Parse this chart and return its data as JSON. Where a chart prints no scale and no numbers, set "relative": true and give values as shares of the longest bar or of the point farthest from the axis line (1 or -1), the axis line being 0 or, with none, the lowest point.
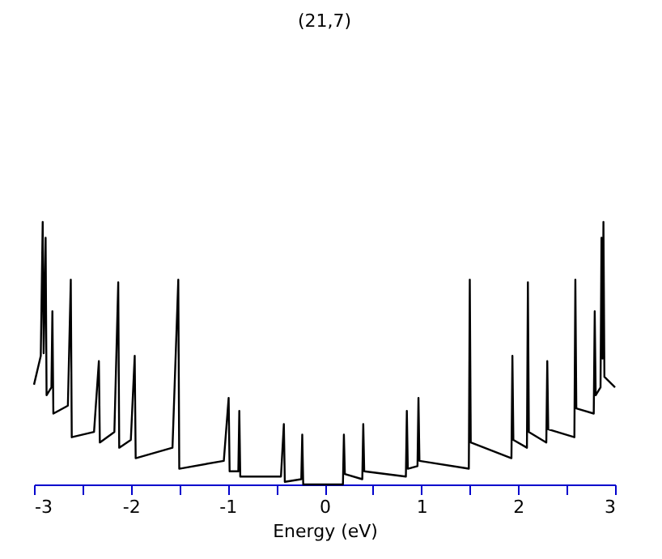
{
  "chart_data": {
    "type": "line",
    "title": "(21,7)",
    "xlabel": "Energy (eV)",
    "relative": true,
    "xlim": [
      -3,
      3
    ],
    "xticks": [
      -3,
      {
        "value": -2.5,
        "label": null
      },
      -2,
      {
        "value": -1.5,
        "label": null
      },
      -1,
      {
        "value": -0.5,
        "label": null
      },
      0,
      {
        "value": 0.5,
        "label": null
      },
      1,
      {
        "value": 1.5,
        "label": null
      },
      2,
      {
        "value": 2.5,
        "label": null
      },
      3
    ],
    "series": [
      {
        "color": "#000000",
        "x": [
          -3.0,
          -2.93,
          -2.91,
          -2.9,
          -2.88,
          -2.87,
          -2.82,
          -2.81,
          -2.8,
          -2.65,
          -2.62,
          -2.61,
          -2.38,
          -2.33,
          -2.32,
          -2.17,
          -2.13,
          -2.12,
          -2.0,
          -1.96,
          -1.95,
          -1.57,
          -1.51,
          -1.5,
          -1.04,
          -0.99,
          -0.98,
          -0.89,
          -0.88,
          -0.87,
          -0.45,
          -0.42,
          -0.41,
          -0.24,
          -0.23,
          -0.22,
          0.19,
          0.2,
          0.21,
          0.39,
          0.4,
          0.41,
          0.84,
          0.85,
          0.86,
          0.96,
          0.97,
          0.98,
          1.49,
          1.5,
          1.51,
          1.93,
          1.94,
          1.95,
          2.09,
          2.1,
          2.11,
          2.29,
          2.3,
          2.31,
          2.58,
          2.59,
          2.6,
          2.78,
          2.79,
          2.8,
          2.85,
          2.86,
          2.87,
          2.88,
          2.89,
          3.0
        ],
        "values": [
          0.38,
          0.49,
          1.0,
          0.5,
          0.94,
          0.34,
          0.37,
          0.66,
          0.27,
          0.3,
          0.78,
          0.18,
          0.2,
          0.47,
          0.16,
          0.2,
          0.77,
          0.14,
          0.17,
          0.49,
          0.1,
          0.14,
          0.78,
          0.06,
          0.09,
          0.33,
          0.05,
          0.05,
          0.28,
          0.03,
          0.03,
          0.23,
          0.01,
          0.02,
          0.19,
          0,
          0,
          0.19,
          0.04,
          0.02,
          0.23,
          0.05,
          0.03,
          0.28,
          0.06,
          0.07,
          0.33,
          0.09,
          0.06,
          0.78,
          0.16,
          0.1,
          0.49,
          0.17,
          0.14,
          0.77,
          0.2,
          0.16,
          0.47,
          0.21,
          0.18,
          0.78,
          0.29,
          0.27,
          0.66,
          0.34,
          0.37,
          0.94,
          0.48,
          1.0,
          0.41,
          0.37
        ]
      }
    ]
  }
}
